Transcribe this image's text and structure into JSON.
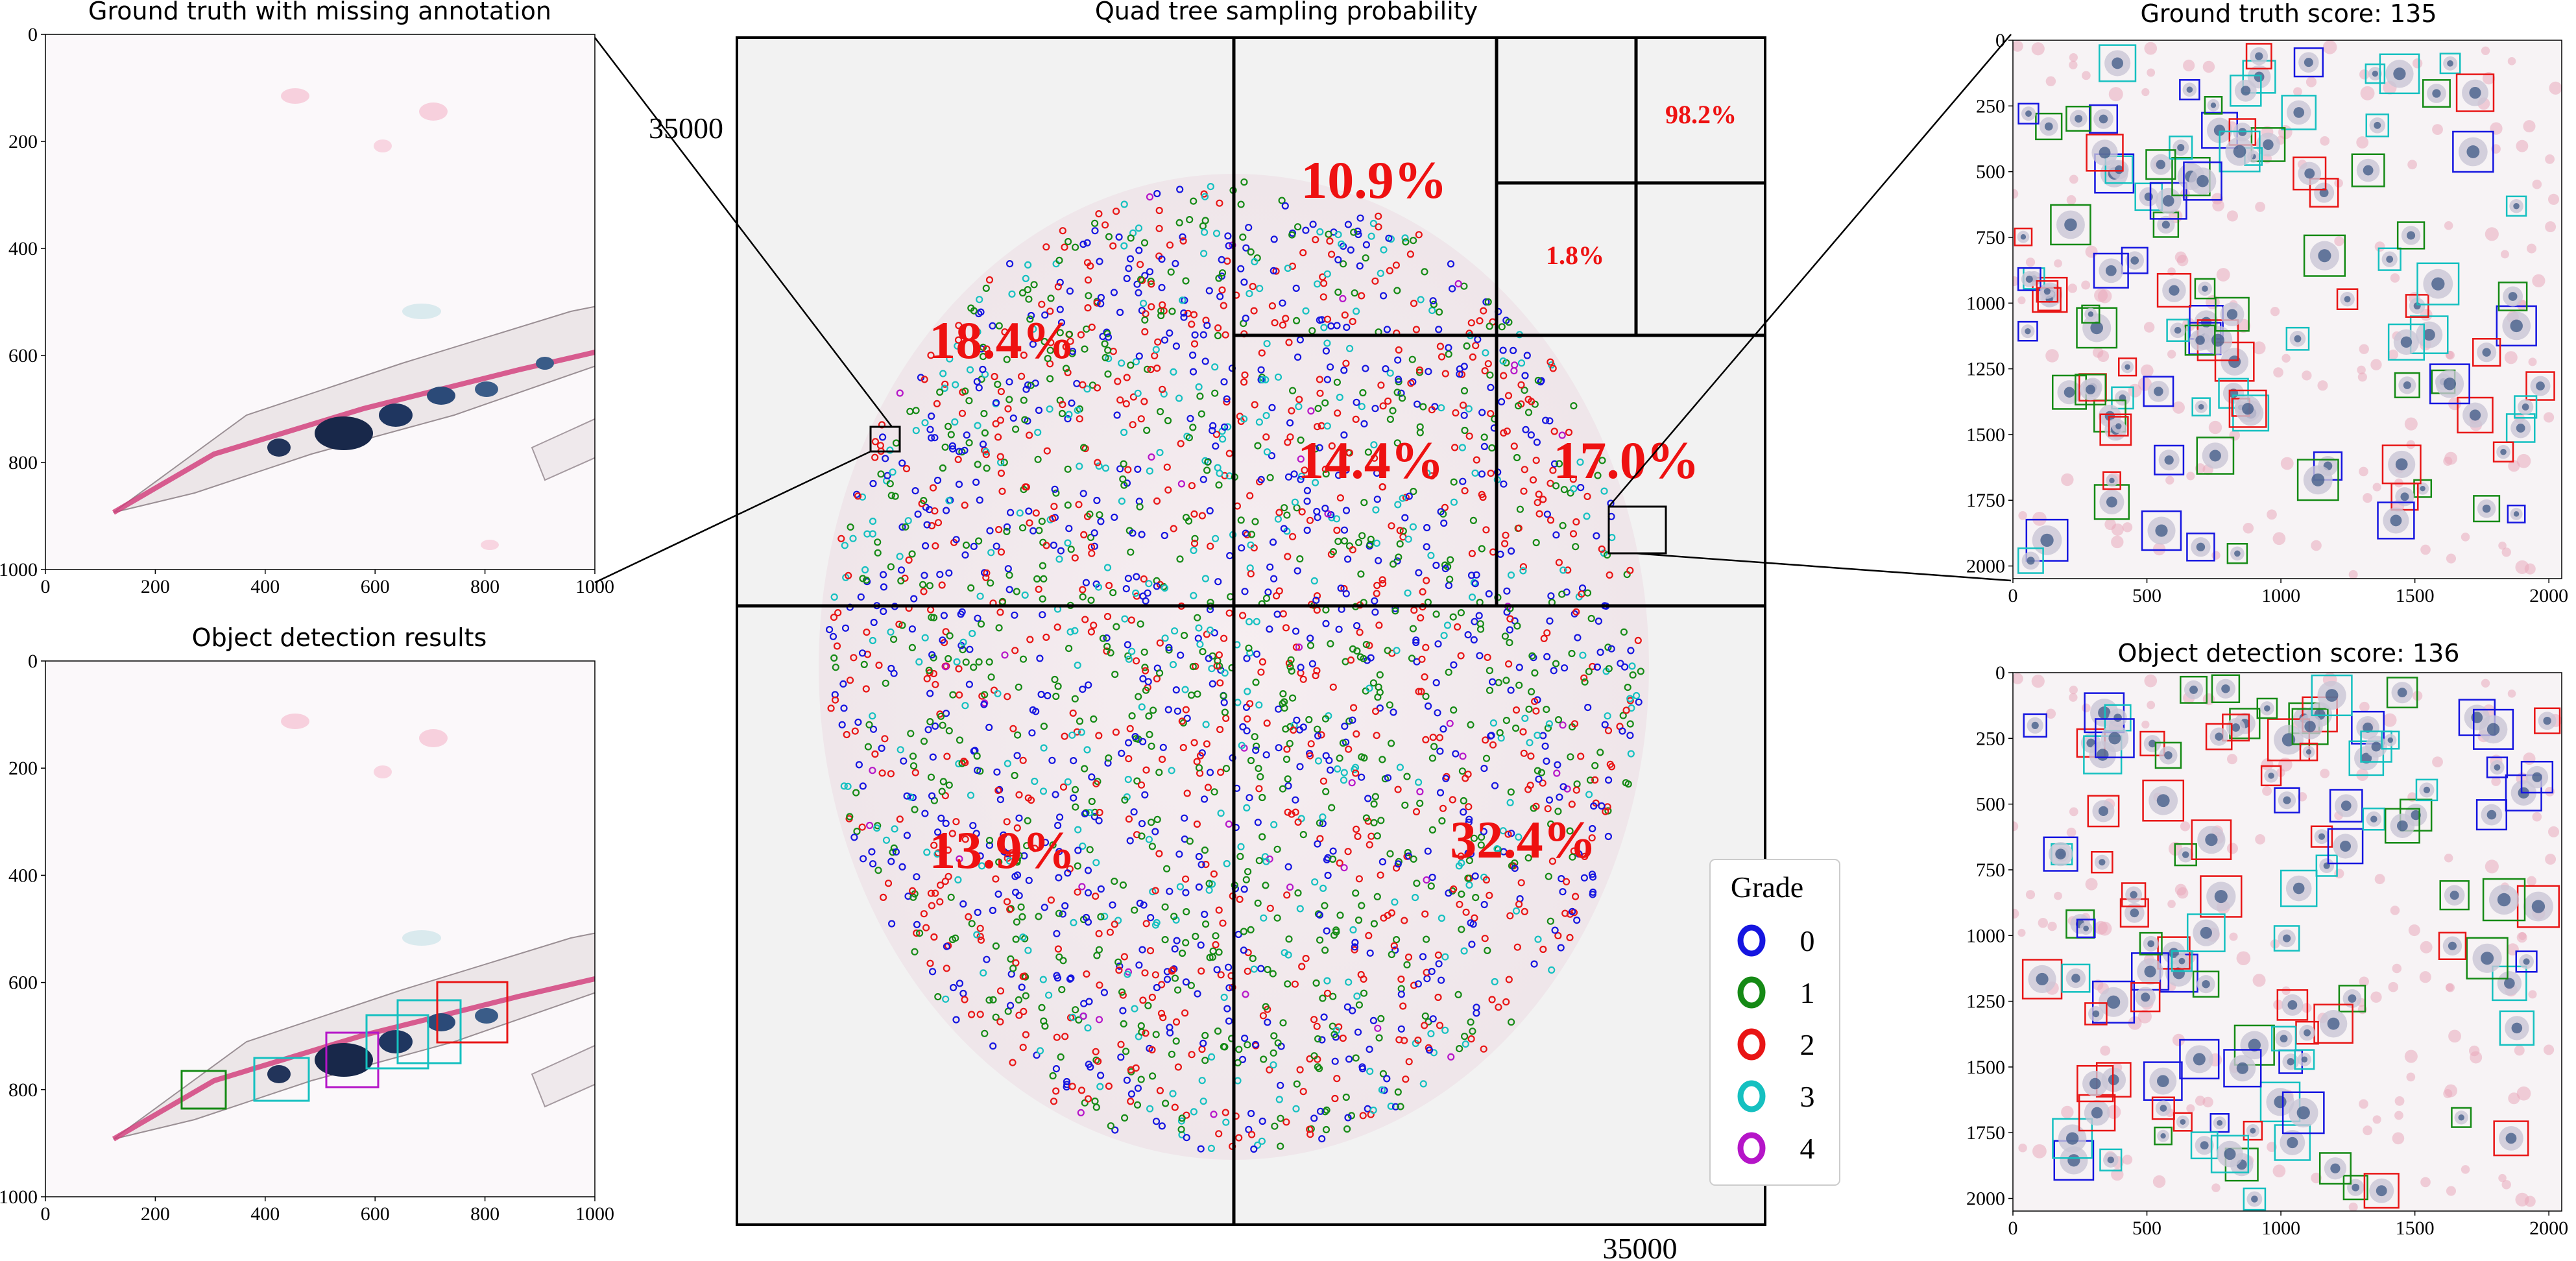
{
  "colors": {
    "grade0": "#1515e0",
    "grade1": "#158a15",
    "grade2": "#e81515",
    "grade3": "#15c0c0",
    "grade4": "#b515c8",
    "percent": "#ee1111",
    "slide_bg": "#f2f2f2"
  },
  "panels": {
    "gt_missing": {
      "title": "Ground truth with missing annotation",
      "xticks": [
        "0",
        "200",
        "400",
        "600",
        "800",
        "1000"
      ],
      "yticks": [
        "0",
        "200",
        "400",
        "600",
        "800",
        "1000"
      ]
    },
    "obj_det": {
      "title": "Object detection results",
      "xticks": [
        "0",
        "200",
        "400",
        "600",
        "800",
        "1000"
      ],
      "yticks": [
        "0",
        "200",
        "400",
        "600",
        "800",
        "1000"
      ]
    },
    "quadtree": {
      "title": "Quad tree sampling probability",
      "x_label_right": "35000",
      "y_label_top": "35000",
      "percentages": [
        "10.9%",
        "98.2%",
        "1.8%",
        "18.4%",
        "14.4%",
        "17.0%",
        "13.9%",
        "32.4%"
      ]
    },
    "gt_score": {
      "title": "Ground truth score: 135",
      "xticks": [
        "0",
        "500",
        "1000",
        "1500",
        "2000"
      ],
      "yticks": [
        "0",
        "250",
        "500",
        "750",
        "1000",
        "1250",
        "1500",
        "1750",
        "2000"
      ]
    },
    "det_score": {
      "title": "Object detection score: 136",
      "xticks": [
        "0",
        "500",
        "1000",
        "1500",
        "2000"
      ],
      "yticks": [
        "0",
        "250",
        "500",
        "750",
        "1000",
        "1250",
        "1500",
        "1750",
        "2000"
      ]
    }
  },
  "legend": {
    "title": "Grade",
    "items": [
      {
        "label": "0",
        "color": "#1515e0"
      },
      {
        "label": "1",
        "color": "#158a15"
      },
      {
        "label": "2",
        "color": "#e81515"
      },
      {
        "label": "3",
        "color": "#15c0c0"
      },
      {
        "label": "4",
        "color": "#b515c8"
      }
    ]
  }
}
